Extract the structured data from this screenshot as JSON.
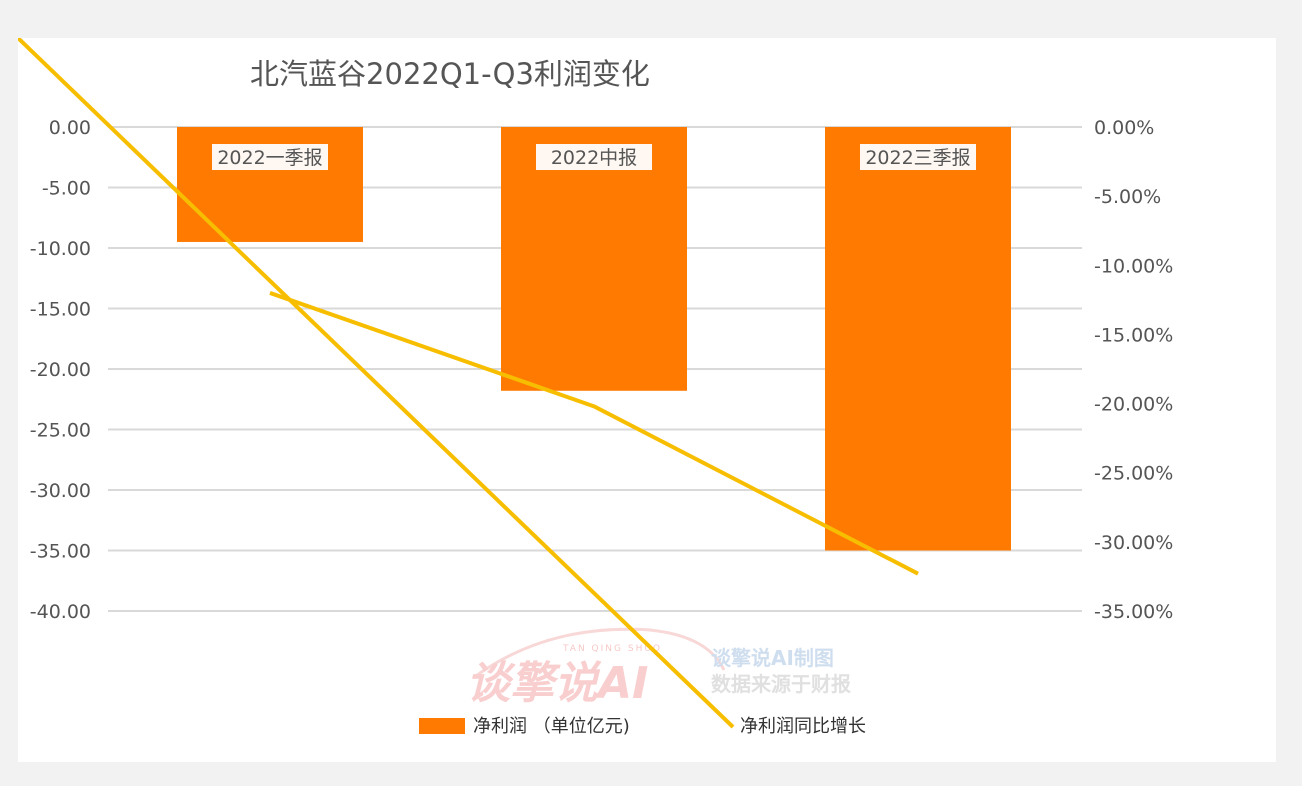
{
  "chart_data": {
    "type": "bar",
    "title": "北汽蓝谷2022Q1-Q3利润变化",
    "categories": [
      "2022一季报",
      "2022中报",
      "2022三季报"
    ],
    "series": [
      {
        "name": "净利润 （单位亿元)",
        "kind": "bar",
        "axis": "left",
        "color": "#ff7a00",
        "values": [
          -9.5,
          -21.8,
          -35.0
        ]
      },
      {
        "name": "净利润同比增长",
        "kind": "line",
        "axis": "right",
        "color": "#f7be00",
        "values": [
          -12.0,
          -20.2,
          -32.3
        ]
      }
    ],
    "y_left": {
      "min": -40,
      "max": 0,
      "step": 5,
      "tick_labels": [
        "0.00",
        "-5.00",
        "-10.00",
        "-15.00",
        "-20.00",
        "-25.00",
        "-30.00",
        "-35.00",
        "-40.00"
      ]
    },
    "y_right": {
      "min": -35,
      "max": 0,
      "step": 5,
      "tick_labels": [
        "0.00%",
        "-5.00%",
        "-10.00%",
        "-15.00%",
        "-20.00%",
        "-25.00%",
        "-30.00%",
        "-35.00%"
      ]
    },
    "grid": true,
    "legend_position": "bottom"
  },
  "watermark": {
    "logo_text": "谈擎说AI",
    "arc_text": "TAN QING SHUO",
    "line1": "谈擎说AI制图",
    "line2": "数据来源于财报"
  }
}
